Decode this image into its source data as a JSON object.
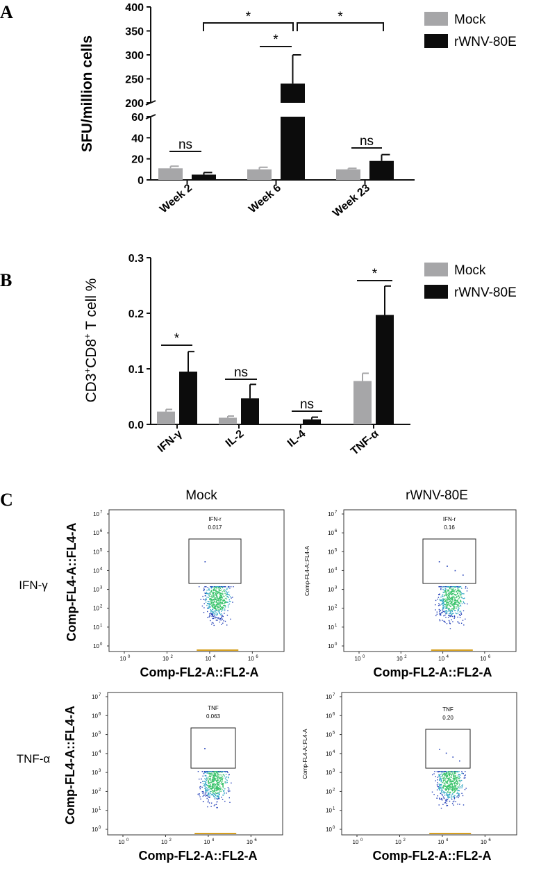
{
  "panels": {
    "a": "A",
    "b": "B",
    "c": "C"
  },
  "chart_data": [
    {
      "type": "bar",
      "panel": "A",
      "title": "",
      "ylabel": "SFU/million cells",
      "xlabel": "",
      "categories": [
        "Week 2",
        "Week 6",
        "Week 23"
      ],
      "series": [
        {
          "name": "Mock",
          "color": "#a6a6a8",
          "values": [
            11,
            10,
            10
          ],
          "errors": [
            2,
            2,
            1
          ]
        },
        {
          "name": "rWNV-80E",
          "color": "#0c0c0c",
          "values": [
            5,
            240,
            18
          ],
          "errors": [
            2,
            60,
            6
          ]
        }
      ],
      "y_axis_lower": {
        "range": [
          0,
          60
        ],
        "ticks": [
          0,
          20,
          40,
          60
        ]
      },
      "y_axis_upper": {
        "range": [
          200,
          400
        ],
        "ticks": [
          200,
          250,
          300,
          350,
          400
        ]
      },
      "axis_break": true,
      "legend": [
        "Mock",
        "rWNV-80E"
      ],
      "legend_position": "right",
      "significance": [
        {
          "group": "Week 2",
          "label": "ns"
        },
        {
          "group": "Week 6",
          "label": "*"
        },
        {
          "group": "Week 23",
          "label": "ns"
        },
        {
          "between": [
            "Week 2",
            "Week 6"
          ],
          "label": "*"
        },
        {
          "between": [
            "Week 6",
            "Week 23"
          ],
          "label": "*"
        }
      ]
    },
    {
      "type": "bar",
      "panel": "B",
      "title": "",
      "ylabel_main": "CD3",
      "ylabel_sup": "+",
      "ylabel_mid": "CD8",
      "ylabel_end": " T cell %",
      "xlabel": "",
      "categories": [
        "IFN-γ",
        "IL-2",
        "IL-4",
        "TNF-α"
      ],
      "series": [
        {
          "name": "Mock",
          "color": "#a6a6a8",
          "values": [
            0.023,
            0.012,
            0.0,
            0.078
          ],
          "errors": [
            0.004,
            0.003,
            0.0,
            0.014
          ]
        },
        {
          "name": "rWNV-80E",
          "color": "#0c0c0c",
          "values": [
            0.095,
            0.047,
            0.009,
            0.197
          ],
          "errors": [
            0.036,
            0.025,
            0.004,
            0.052
          ]
        }
      ],
      "ylim": [
        0,
        0.3
      ],
      "yticks": [
        "0.0",
        "0.1",
        "0.2",
        "0.3"
      ],
      "legend": [
        "Mock",
        "rWNV-80E"
      ],
      "legend_position": "right",
      "significance": [
        {
          "group": "IFN-γ",
          "label": "*"
        },
        {
          "group": "IL-2",
          "label": "ns"
        },
        {
          "group": "IL-4",
          "label": "ns"
        },
        {
          "group": "TNF-α",
          "label": "*"
        }
      ]
    }
  ],
  "flow": {
    "col_headers": [
      "Mock",
      "rWNV-80E"
    ],
    "row_labels": [
      "IFN-γ",
      "TNF-α"
    ],
    "xlabel": "Comp-FL2-A::FL2-A",
    "ylabel": "Comp-FL4-A::FL4-A",
    "x_ticks": [
      "10",
      "10",
      "10",
      "10"
    ],
    "x_tick_exp": [
      "0",
      "2",
      "4",
      "6"
    ],
    "y_ticks": [
      "10",
      "10",
      "10",
      "10",
      "10",
      "10",
      "10",
      "10"
    ],
    "y_tick_exp": [
      "0",
      "1",
      "2",
      "3",
      "4",
      "5",
      "6",
      "7"
    ],
    "plots": [
      {
        "gate_name": "IFN-r",
        "gate_value": "0.017",
        "big_ylabel": true
      },
      {
        "gate_name": "IFN-r",
        "gate_value": "0.16",
        "big_ylabel": false
      },
      {
        "gate_name": "TNF",
        "gate_value": "0.063",
        "big_ylabel": true
      },
      {
        "gate_name": "TNF",
        "gate_value": "0.20",
        "big_ylabel": false
      }
    ]
  }
}
